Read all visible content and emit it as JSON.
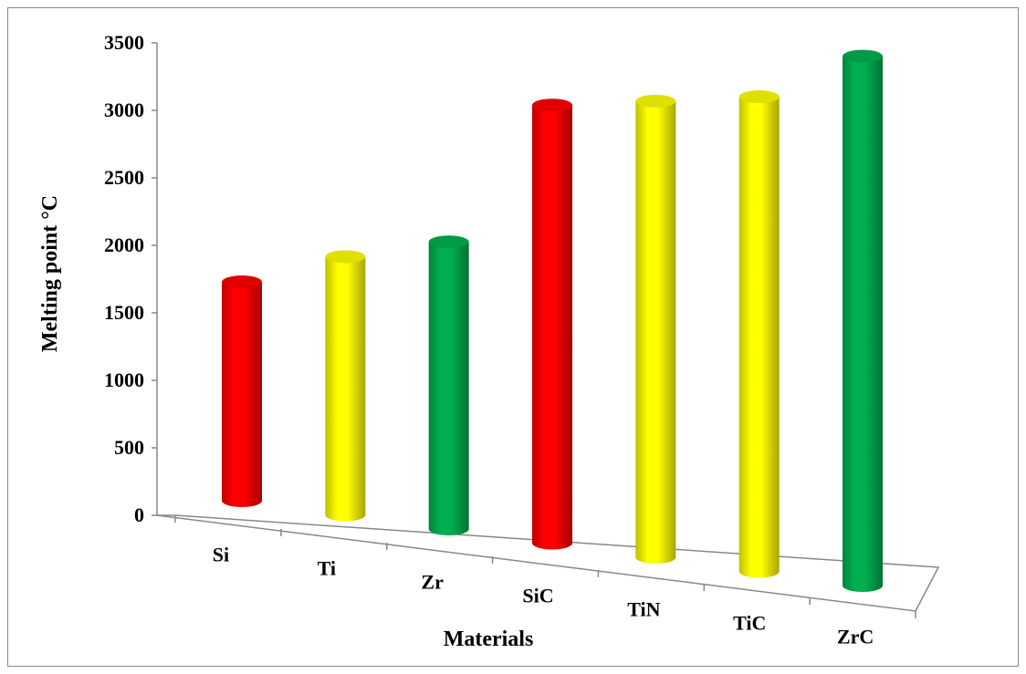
{
  "chart_data": {
    "type": "bar",
    "style": "3d-cylinder",
    "categories": [
      "Si",
      "Ti",
      "Zr",
      "SiC",
      "TiN",
      "TiC",
      "ZrC"
    ],
    "values": [
      1414,
      1668,
      1855,
      2830,
      2947,
      3067,
      3420
    ],
    "colors": [
      "#ff0000",
      "#ffff00",
      "#00b050",
      "#ff0000",
      "#ffff00",
      "#ffff00",
      "#00b050"
    ],
    "xlabel": "Materials",
    "ylabel": "Melting point °C",
    "ylim": [
      0,
      3500
    ],
    "yticks": [
      "0",
      "500",
      "1000",
      "1500",
      "2000",
      "2500",
      "3000",
      "3500"
    ],
    "grid": false,
    "legend": "none"
  }
}
